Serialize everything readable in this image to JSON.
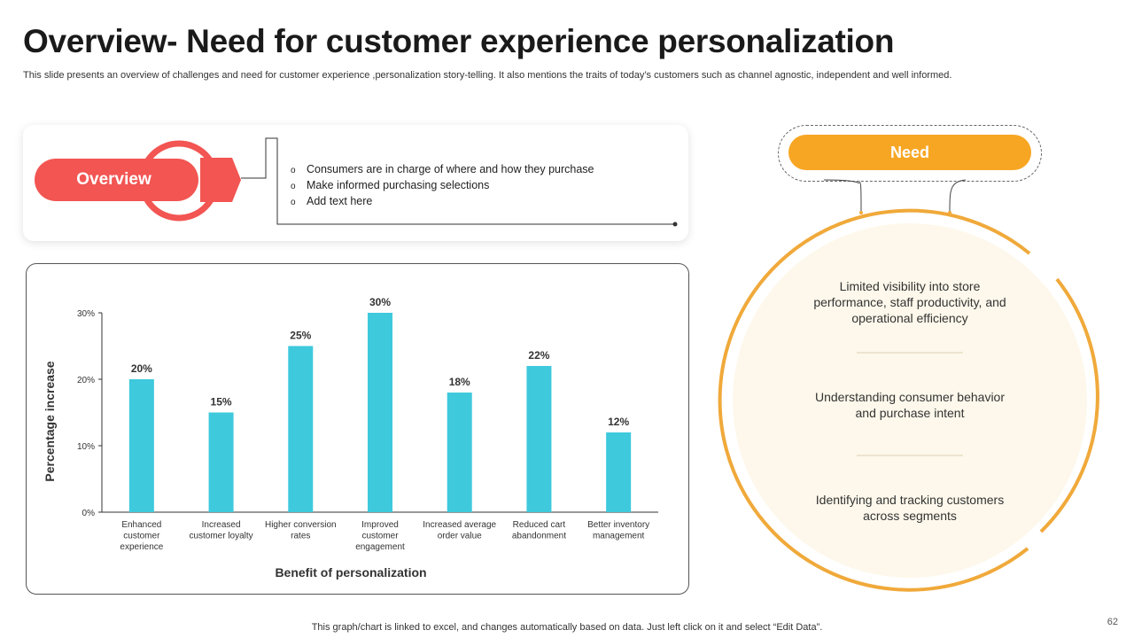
{
  "title": "Overview- Need for customer experience personalization",
  "subtitle": "This slide presents an overview of challenges and need for customer experience ,personalization story-telling. It also mentions the traits of today’s customers such as channel agnostic, independent and well informed.",
  "overview": {
    "label": "Overview",
    "items": [
      "Consumers are in charge of where and how they purchase",
      "Make informed purchasing selections",
      "Add text here"
    ],
    "bullet": "o"
  },
  "need": {
    "label": "Need",
    "items": [
      "Limited visibility into store performance, staff productivity, and operational efficiency",
      "Understanding consumer behavior and purchase intent",
      "Identifying and tracking customers across segments"
    ]
  },
  "colors": {
    "bar": "#3ec9dc",
    "overview": "#f25552",
    "need": "#f7a623",
    "ring": "#f0a93a",
    "circle_fill": "#fdf8eb"
  },
  "chart_data": {
    "type": "bar",
    "title": "",
    "xlabel": "Benefit of personalization",
    "ylabel": "Percentage increase",
    "ylim": [
      0,
      30
    ],
    "yticks": [
      "0%",
      "10%",
      "20%",
      "30%"
    ],
    "categories": [
      [
        "Enhanced",
        "customer",
        "experience"
      ],
      [
        "Increased",
        "customer loyalty"
      ],
      [
        "Higher conversion",
        "rates"
      ],
      [
        "Improved",
        "customer",
        "engagement"
      ],
      [
        "Increased average",
        "order value"
      ],
      [
        "Reduced cart",
        "abandonment"
      ],
      [
        "Better inventory",
        "management"
      ]
    ],
    "values": [
      20,
      15,
      25,
      30,
      18,
      22,
      12
    ],
    "data_labels": [
      "20%",
      "15%",
      "25%",
      "30%",
      "18%",
      "22%",
      "12%"
    ],
    "grid": false,
    "legend": "none"
  },
  "footer": "This graph/chart is linked to excel,  and changes automatically based on data. Just left click on it and select “Edit Data”.",
  "page_number": "62"
}
